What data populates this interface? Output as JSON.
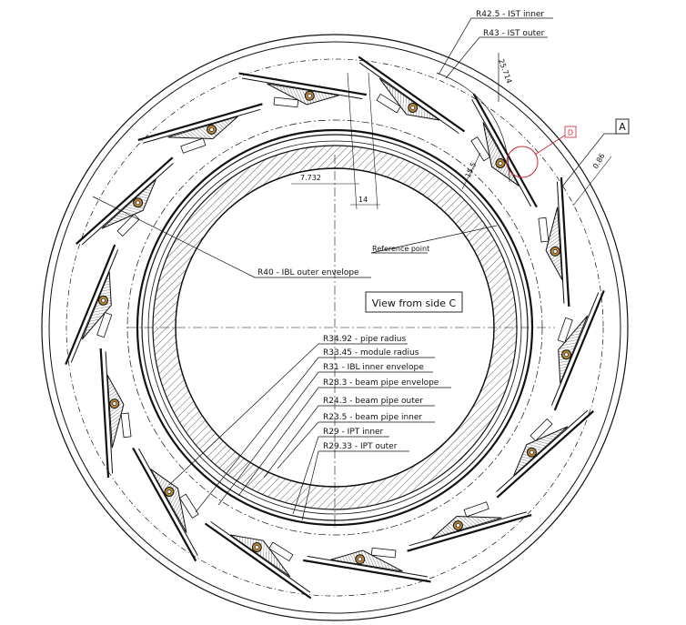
{
  "drawing": {
    "labels": {
      "ist_inner": "R42.5  - IST inner",
      "ist_outer": "R43 - IST outer",
      "angle_25": "25.714",
      "angle_7": "7.732",
      "angle_14": "14",
      "dim_086": "0.86",
      "dim_155": "15.5",
      "reference_point": "Reference point",
      "ibl_outer": "R40 - IBL outer envelope",
      "view_from_side": "View from side C",
      "pipe_radius": "R34.92  - pipe radius",
      "module_radius": "R33.45  - module radius",
      "ibl_inner": "R31 - IBL inner envelope",
      "beam_pipe_envelope": "R28.3  - beam pipe envelope",
      "beam_pipe_outer": "R24.3  - beam pipe outer",
      "beam_pipe_inner": "R23.5  - beam pipe inner",
      "ipt_inner": "R29 - IPT inner",
      "ipt_outer": "R29.33  - IPT outer",
      "detail_d": "D",
      "section_a": "A"
    },
    "colors": {
      "line": "#111111",
      "detail_circle": "#cc2233",
      "hatch": "#333333",
      "copper": "#b8863b"
    },
    "stave_count": 14
  }
}
